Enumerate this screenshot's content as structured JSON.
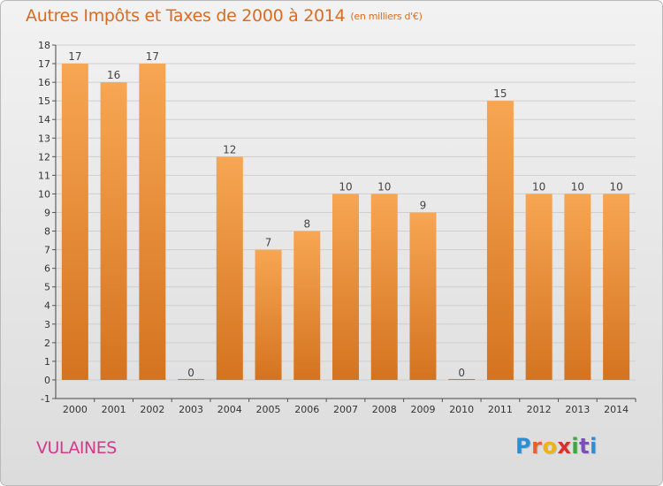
{
  "title": "Autres Impôts et Taxes de 2000 à 2014",
  "unit_label": "(en milliers d'€)",
  "place": "VULAINES",
  "logo": {
    "letters": [
      "P",
      "r",
      "o",
      "x",
      "i",
      "t",
      "i"
    ],
    "colors": [
      "#2b8fd6",
      "#e8612c",
      "#f0b21a",
      "#d6302b",
      "#3da83a",
      "#7c4fb5",
      "#2b8fd6"
    ]
  },
  "colors": {
    "title": "#d96c22",
    "bar_top": "#f7a653",
    "bar_bottom": "#d4731f",
    "place": "#d43a8c",
    "axis_text": "#333333",
    "grid": "#cfcfcf"
  },
  "chart_data": {
    "type": "bar",
    "categories": [
      "2000",
      "2001",
      "2002",
      "2003",
      "2004",
      "2005",
      "2006",
      "2007",
      "2008",
      "2009",
      "2010",
      "2011",
      "2012",
      "2013",
      "2014"
    ],
    "values": [
      17,
      16,
      17,
      0,
      12,
      7,
      8,
      10,
      10,
      9,
      0,
      15,
      10,
      10,
      10
    ],
    "data_labels": [
      "17",
      "16",
      "17",
      "0",
      "12",
      "7",
      "8",
      "10",
      "10",
      "9",
      "0",
      "15",
      "10",
      "10",
      "10"
    ],
    "yticks": [
      "-1",
      "0",
      "1",
      "2",
      "3",
      "4",
      "5",
      "6",
      "7",
      "8",
      "9",
      "10",
      "11",
      "12",
      "13",
      "14",
      "15",
      "16",
      "17",
      "18"
    ],
    "ylim": [
      -1,
      18
    ],
    "grid": true
  }
}
